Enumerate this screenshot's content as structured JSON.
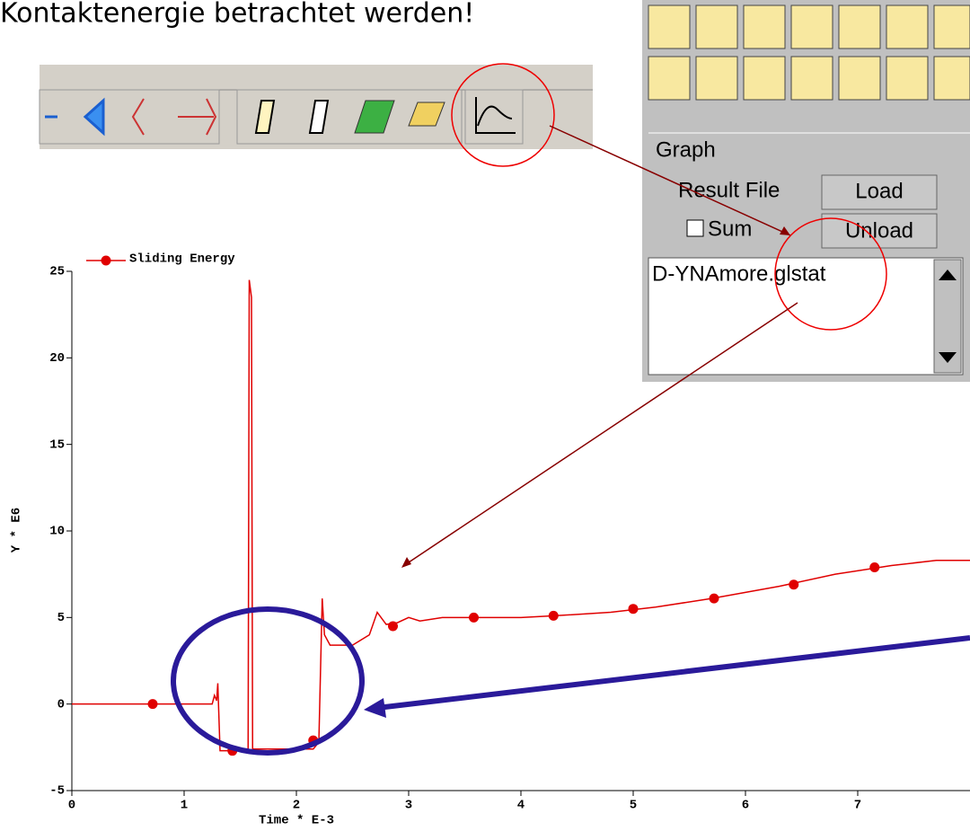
{
  "slide_text": "Kontaktenergie betrachtet werden!",
  "panel": {
    "title": "Graph",
    "result_file": "Result File",
    "load": "Load",
    "sum": "Sum",
    "unload": "Unload",
    "file": "D-YNAmore.glstat"
  },
  "chart_data": {
    "type": "line",
    "xlabel": "Time * E-3",
    "ylabel": "Y * E6",
    "xlim": [
      0,
      8
    ],
    "ylim": [
      -5,
      25
    ],
    "xticks": [
      0,
      1,
      2,
      3,
      4,
      5,
      6,
      7
    ],
    "yticks": [
      -5,
      0,
      5,
      10,
      15,
      20,
      25
    ],
    "legend": "top-left",
    "series": [
      {
        "name": "Sliding Energy",
        "color": "#e00000",
        "x": [
          0,
          1.25,
          1.27,
          1.29,
          1.3,
          1.32,
          1.57,
          1.58,
          1.6,
          1.61,
          2.15,
          2.2,
          2.23,
          2.25,
          2.3,
          2.5,
          2.65,
          2.72,
          2.8,
          2.9,
          3.0,
          3.1,
          3.3,
          3.5,
          4.0,
          4.3,
          4.8,
          5.2,
          5.7,
          6.3,
          6.8,
          7.3,
          7.7,
          8.0
        ],
        "values": [
          0,
          0,
          0.5,
          0.2,
          1.2,
          -2.7,
          -2.7,
          24.5,
          23.5,
          -2.6,
          -2.6,
          -2.2,
          6.1,
          4.0,
          3.4,
          3.4,
          4.0,
          5.3,
          4.6,
          4.7,
          5.0,
          4.8,
          5.0,
          5.0,
          5.0,
          5.1,
          5.3,
          5.6,
          6.1,
          6.8,
          7.5,
          8.0,
          8.3,
          8.3
        ],
        "marker_x": [
          0.72,
          1.43,
          2.15,
          2.86,
          3.58,
          4.29,
          5.0,
          5.72,
          6.43,
          7.15
        ],
        "marker_values": [
          0,
          -2.7,
          -2.1,
          4.5,
          5.0,
          5.1,
          5.5,
          6.1,
          6.9,
          7.9
        ]
      }
    ]
  }
}
